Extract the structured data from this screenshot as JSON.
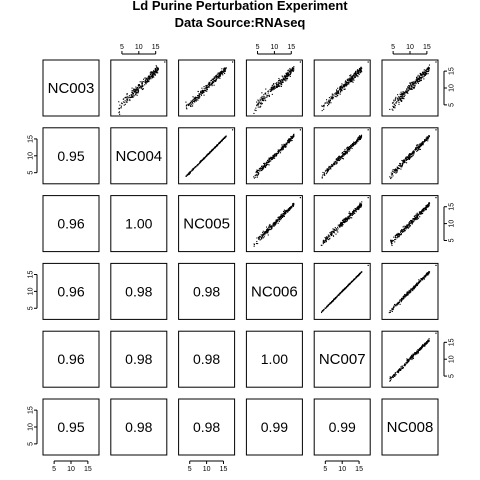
{
  "chart_data": {
    "type": "scatter-matrix",
    "title": "Ld Purine Perturbation Experiment",
    "subtitle": "Data Source:RNAseq",
    "variables": [
      "NC003",
      "NC004",
      "NC005",
      "NC006",
      "NC007",
      "NC008"
    ],
    "axis_range": [
      2,
      18
    ],
    "axis_ticks": [
      "5",
      "10",
      "15"
    ],
    "correlations": [
      {
        "row": 1,
        "col": 0,
        "value": "0.95"
      },
      {
        "row": 2,
        "col": 0,
        "value": "0.96"
      },
      {
        "row": 2,
        "col": 1,
        "value": "1.00"
      },
      {
        "row": 3,
        "col": 0,
        "value": "0.96"
      },
      {
        "row": 3,
        "col": 1,
        "value": "0.98"
      },
      {
        "row": 3,
        "col": 2,
        "value": "0.98"
      },
      {
        "row": 4,
        "col": 0,
        "value": "0.96"
      },
      {
        "row": 4,
        "col": 1,
        "value": "0.98"
      },
      {
        "row": 4,
        "col": 2,
        "value": "0.98"
      },
      {
        "row": 4,
        "col": 3,
        "value": "1.00"
      },
      {
        "row": 5,
        "col": 0,
        "value": "0.95"
      },
      {
        "row": 5,
        "col": 1,
        "value": "0.98"
      },
      {
        "row": 5,
        "col": 2,
        "value": "0.98"
      },
      {
        "row": 5,
        "col": 3,
        "value": "0.99"
      },
      {
        "row": 5,
        "col": 4,
        "value": "0.99"
      }
    ],
    "scatter_panels": [
      {
        "row": 0,
        "col": 1,
        "spread": 0.8
      },
      {
        "row": 0,
        "col": 2,
        "spread": 0.65
      },
      {
        "row": 0,
        "col": 3,
        "spread": 0.75
      },
      {
        "row": 0,
        "col": 4,
        "spread": 0.75
      },
      {
        "row": 0,
        "col": 5,
        "spread": 0.8
      },
      {
        "row": 1,
        "col": 2,
        "spread": 0.1
      },
      {
        "row": 1,
        "col": 3,
        "spread": 0.5
      },
      {
        "row": 1,
        "col": 4,
        "spread": 0.5
      },
      {
        "row": 1,
        "col": 5,
        "spread": 0.5
      },
      {
        "row": 2,
        "col": 3,
        "spread": 0.5
      },
      {
        "row": 2,
        "col": 4,
        "spread": 0.5
      },
      {
        "row": 2,
        "col": 5,
        "spread": 0.5
      },
      {
        "row": 3,
        "col": 4,
        "spread": 0.1
      },
      {
        "row": 3,
        "col": 5,
        "spread": 0.3
      },
      {
        "row": 4,
        "col": 5,
        "spread": 0.35
      }
    ],
    "point_color": "#000000"
  }
}
